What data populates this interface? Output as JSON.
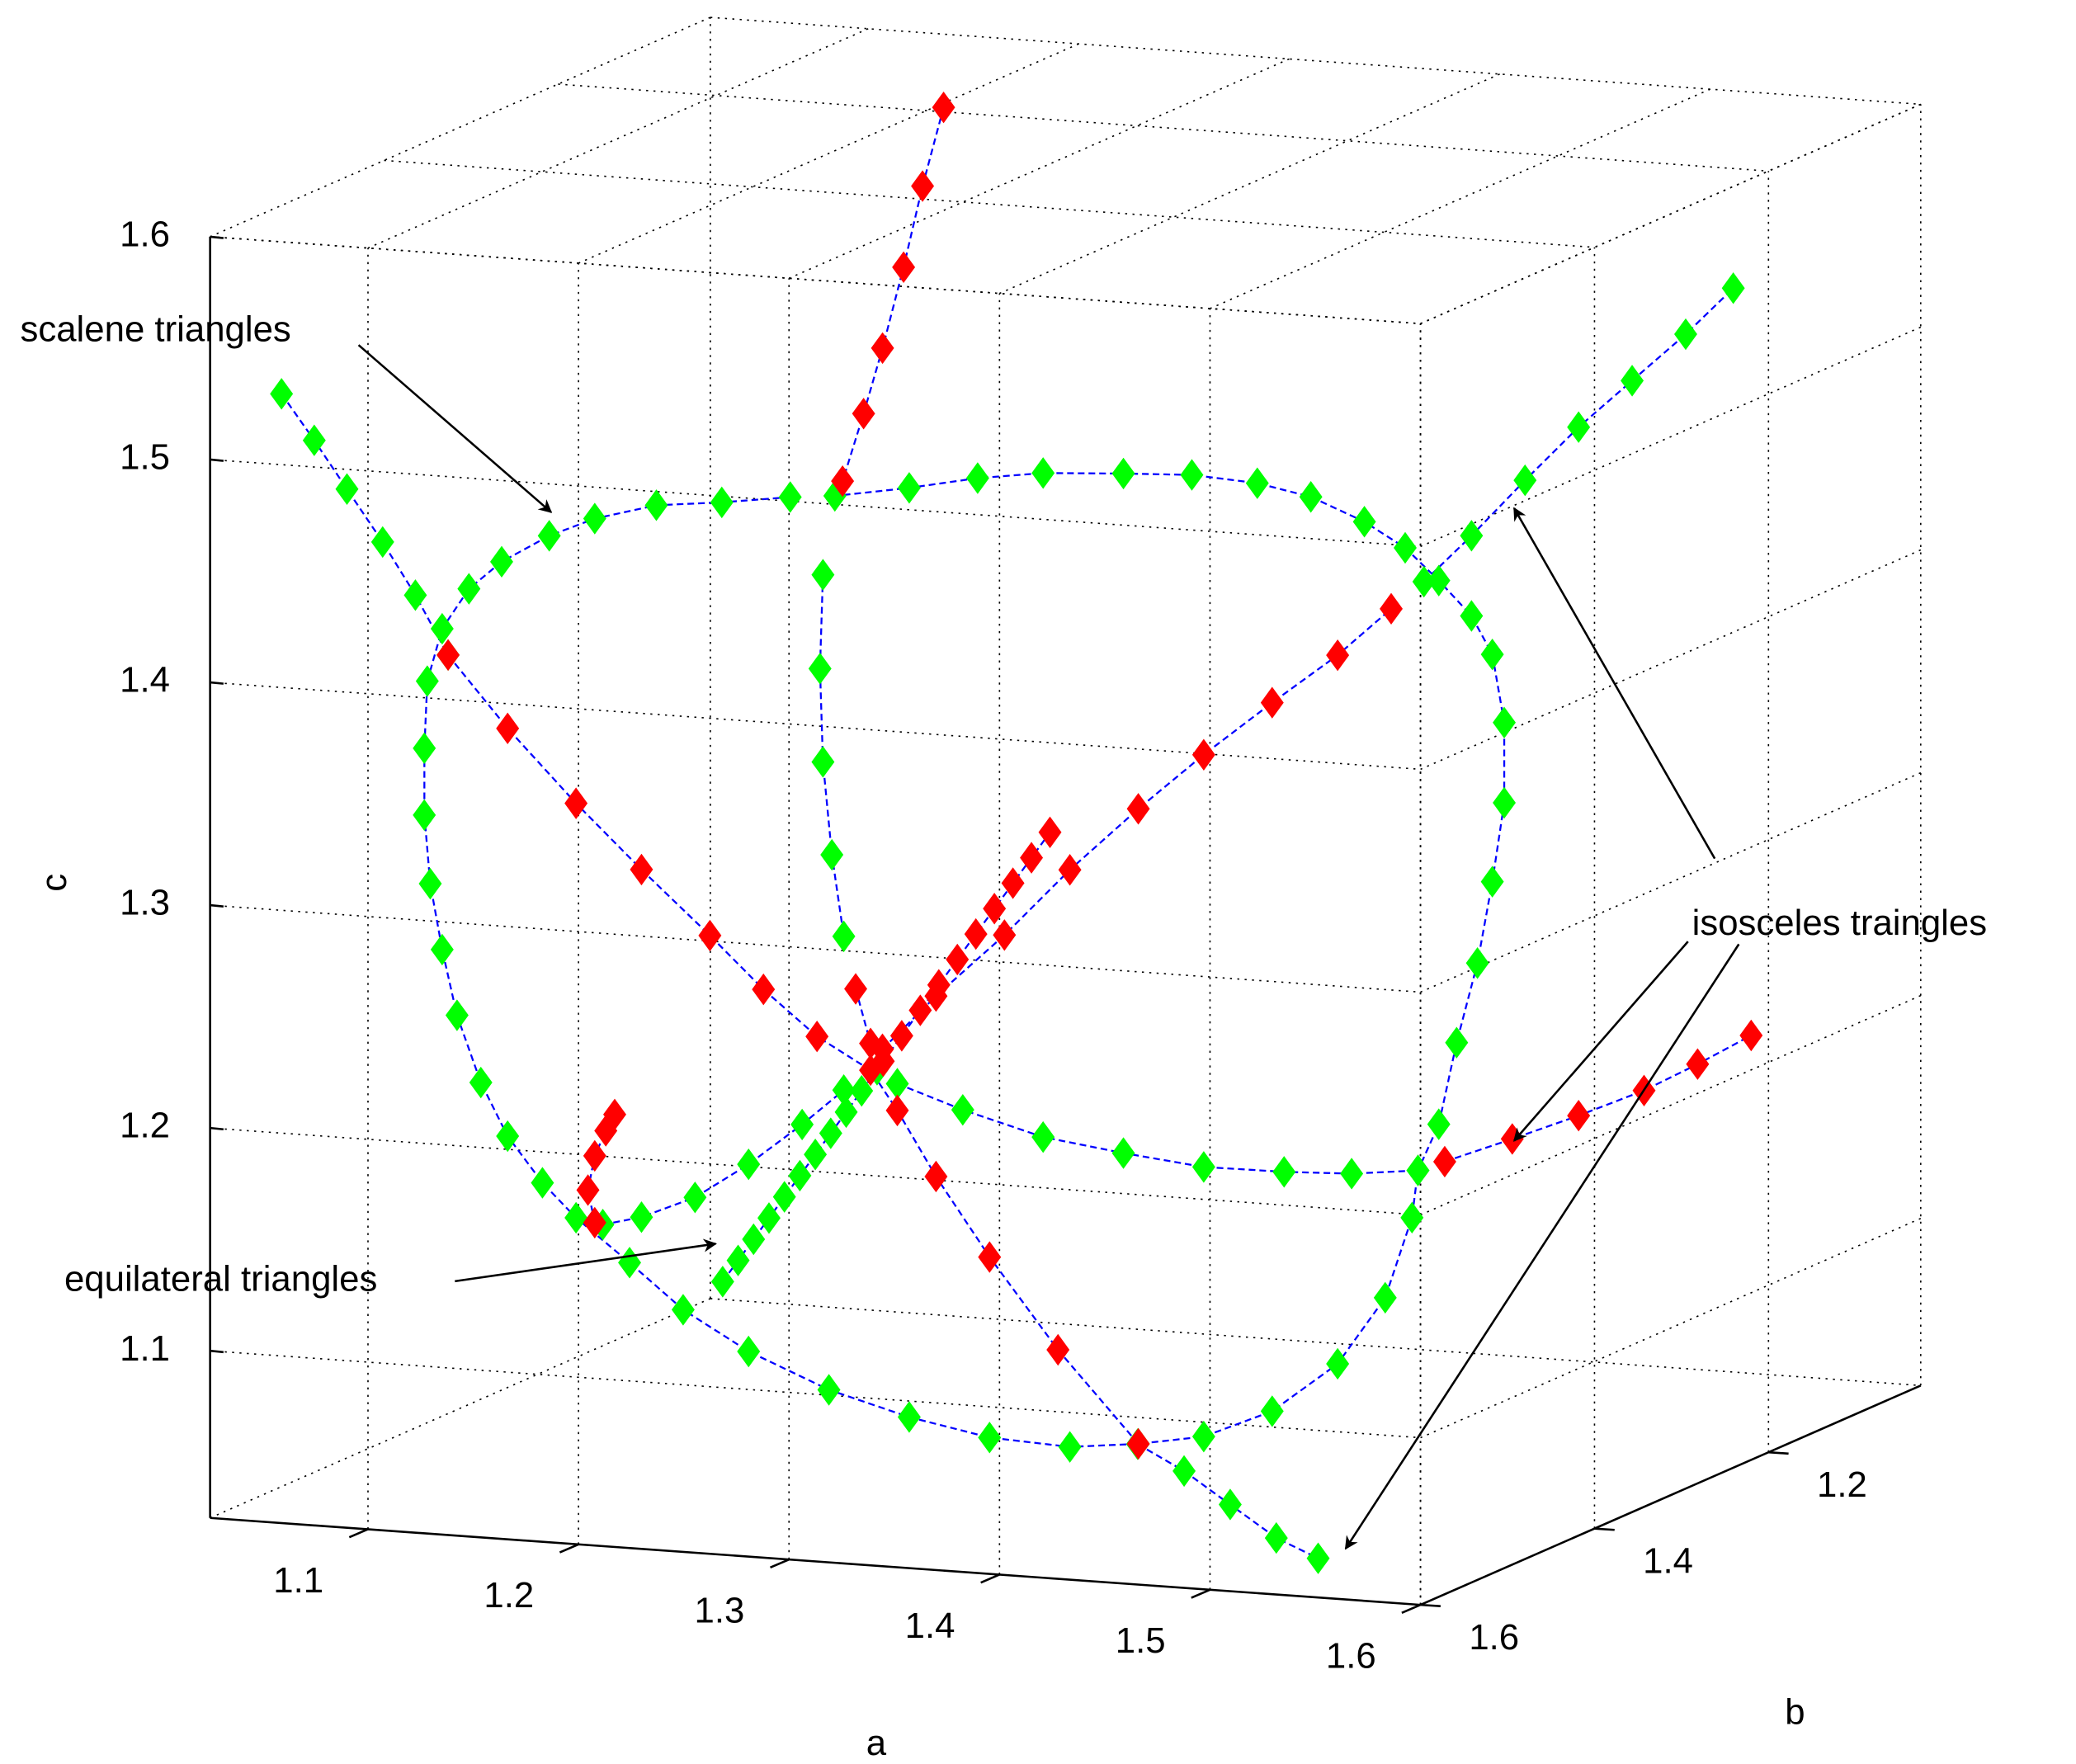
{
  "chart_data": {
    "type": "scatter3d",
    "xlabel": "a",
    "ylabel": "b",
    "zlabel": "c",
    "xlim": [
      1.025,
      1.6
    ],
    "ylim": [
      1.025,
      1.6
    ],
    "zlim": [
      1.025,
      1.6
    ],
    "xticks": [
      1.1,
      1.2,
      1.3,
      1.4,
      1.5,
      1.6
    ],
    "yticks": [
      1.2,
      1.4,
      1.6
    ],
    "zticks": [
      1.1,
      1.2,
      1.3,
      1.4,
      1.5,
      1.6
    ],
    "grid": true,
    "line_color": "#0000ff",
    "annotations": [
      "scalene triangles",
      "equilateral triangles",
      "isosceles traingles"
    ],
    "series": [
      {
        "color": "#00ff00",
        "x": [
          1.22,
          1.197,
          1.175,
          1.154,
          1.139,
          1.123,
          1.112,
          1.103,
          1.098,
          1.097,
          1.097,
          1.099,
          1.103,
          1.108,
          1.116,
          1.125,
          1.137,
          1.148,
          1.166,
          1.184,
          1.206,
          1.233,
          1.26,
          1.287,
          1.314,
          1.337,
          1.359,
          1.382,
          1.404,
          1.42,
          1.429,
          1.431,
          1.438,
          1.444,
          1.451,
          1.456,
          1.46,
          1.46,
          1.456,
          1.449,
          1.438,
          1.427,
          1.413,
          1.395,
          1.377,
          1.355,
          1.332,
          1.305,
          1.283,
          1.26,
          1.235
        ],
        "y": [
          1.405,
          1.428,
          1.45,
          1.47,
          1.486,
          1.502,
          1.513,
          1.522,
          1.527,
          1.528,
          1.528,
          1.526,
          1.522,
          1.517,
          1.509,
          1.5,
          1.489,
          1.477,
          1.459,
          1.441,
          1.419,
          1.392,
          1.365,
          1.338,
          1.311,
          1.288,
          1.266,
          1.243,
          1.221,
          1.205,
          1.196,
          1.194,
          1.187,
          1.181,
          1.174,
          1.169,
          1.165,
          1.165,
          1.169,
          1.176,
          1.187,
          1.199,
          1.212,
          1.23,
          1.248,
          1.27,
          1.293,
          1.32,
          1.342,
          1.365,
          1.39
        ],
        "z": [
          1.463,
          1.463,
          1.464,
          1.46,
          1.454,
          1.444,
          1.433,
          1.416,
          1.393,
          1.363,
          1.333,
          1.302,
          1.272,
          1.242,
          1.211,
          1.186,
          1.164,
          1.147,
          1.125,
          1.102,
          1.081,
          1.061,
          1.046,
          1.034,
          1.027,
          1.026,
          1.027,
          1.036,
          1.055,
          1.083,
          1.118,
          1.139,
          1.159,
          1.195,
          1.23,
          1.266,
          1.301,
          1.337,
          1.368,
          1.386,
          1.403,
          1.419,
          1.432,
          1.445,
          1.453,
          1.459,
          1.462,
          1.465,
          1.465,
          1.463,
          1.462
        ]
      },
      {
        "color": "#00ff00",
        "x": [
          1.157,
          1.17,
          1.188,
          1.206,
          1.224,
          1.238
        ],
        "y": [
          1.468,
          1.455,
          1.437,
          1.419,
          1.401,
          1.387
        ],
        "z": [
          1.143,
          1.145,
          1.152,
          1.165,
          1.181,
          1.195
        ]
      },
      {
        "color": "#00ff00",
        "x": [
          1.256,
          1.278,
          1.305,
          1.332,
          1.359,
          1.386,
          1.409,
          1.431
        ],
        "y": [
          1.369,
          1.347,
          1.32,
          1.293,
          1.266,
          1.239,
          1.217,
          1.194
        ],
        "z": [
          1.196,
          1.182,
          1.167,
          1.157,
          1.148,
          1.143,
          1.14,
          1.139
        ]
      },
      {
        "color": "#00ff00",
        "x": [
          1.433,
          1.449,
          1.467,
          1.485,
          1.503,
          1.521,
          1.537
        ],
        "y": [
          1.192,
          1.176,
          1.158,
          1.14,
          1.122,
          1.104,
          1.088
        ],
        "z": [
          1.403,
          1.422,
          1.445,
          1.467,
          1.486,
          1.505,
          1.524
        ]
      },
      {
        "color": "#00ff00",
        "x": [
          1.049,
          1.06,
          1.071,
          1.083,
          1.094,
          1.105
        ],
        "y": [
          1.576,
          1.565,
          1.554,
          1.542,
          1.531,
          1.52
        ],
        "z": [
          1.527,
          1.505,
          1.482,
          1.457,
          1.432,
          1.404
        ]
      },
      {
        "color": "#00ff00",
        "x": [
          1.366,
          1.41,
          1.46,
          1.51,
          1.546
        ],
        "y": [
          1.359,
          1.412,
          1.48,
          1.548,
          1.587
        ],
        "z": [
          1.04,
          1.04,
          1.04,
          1.04,
          1.04
        ]
      },
      {
        "color": "#00ff00",
        "x": [
          1.231,
          1.23,
          1.231,
          1.234,
          1.238
        ],
        "y": [
          1.394,
          1.395,
          1.394,
          1.391,
          1.387
        ],
        "z": [
          1.427,
          1.385,
          1.343,
          1.301,
          1.264
        ]
      },
      {
        "color": "#00ff00",
        "x": [
          1.035,
          1.0475,
          1.06,
          1.0725,
          1.085,
          1.0975,
          1.11,
          1.1225,
          1.135,
          1.1475,
          1.16
        ],
        "y": [
          1.035,
          1.0475,
          1.06,
          1.0725,
          1.085,
          1.0975,
          1.11,
          1.1225,
          1.135,
          1.1475,
          1.16
        ],
        "z": [
          1.035,
          1.0475,
          1.06,
          1.0725,
          1.085,
          1.0975,
          1.11,
          1.1225,
          1.135,
          1.1475,
          1.16
        ]
      },
      {
        "color": "#ff0000",
        "x": [
          1.154,
          1.152,
          1.154,
          1.158,
          1.161
        ],
        "y": [
          1.47,
          1.473,
          1.47,
          1.467,
          1.464
        ],
        "z": [
          1.144,
          1.159,
          1.174,
          1.185,
          1.192
        ]
      },
      {
        "color": "#ff0000",
        "x": [
          1.44,
          1.463,
          1.485,
          1.507,
          1.525,
          1.543
        ],
        "y": [
          1.185,
          1.163,
          1.14,
          1.118,
          1.1,
          1.082
        ],
        "z": [
          1.142,
          1.15,
          1.158,
          1.167,
          1.177,
          1.188
        ]
      },
      {
        "color": "#ff0000",
        "x": [
          1.251,
          1.269,
          1.292,
          1.314,
          1.337,
          1.359,
          1.382,
          1.404,
          1.422
        ],
        "y": [
          1.374,
          1.356,
          1.333,
          1.311,
          1.288,
          1.266,
          1.243,
          1.221,
          1.203
        ],
        "z": [
          1.212,
          1.234,
          1.259,
          1.286,
          1.311,
          1.333,
          1.354,
          1.373,
          1.392
        ]
      },
      {
        "color": "#ff0000",
        "x": [
          1.105,
          1.125,
          1.148,
          1.17,
          1.193,
          1.211,
          1.229,
          1.247,
          1.256,
          1.269,
          1.287,
          1.31,
          1.337
        ],
        "y": [
          1.52,
          1.5,
          1.477,
          1.455,
          1.432,
          1.414,
          1.396,
          1.378,
          1.369,
          1.356,
          1.338,
          1.315,
          1.288
        ],
        "z": [
          1.404,
          1.369,
          1.333,
          1.301,
          1.269,
          1.243,
          1.22,
          1.203,
          1.184,
          1.153,
          1.115,
          1.071,
          1.026
        ]
      },
      {
        "color": "#ff0000",
        "x": [
          1.204,
          1.194,
          1.185,
          1.175,
          1.166,
          1.156
        ],
        "y": [
          1.19,
          1.19,
          1.19,
          1.19,
          1.19,
          1.19
        ],
        "z": [
          1.6,
          1.564,
          1.527,
          1.49,
          1.46,
          1.429
        ]
      },
      {
        "color": "#ff0000",
        "x": [
          1.242,
          1.247
        ],
        "y": [
          1.383,
          1.378
        ],
        "z": [
          1.24,
          1.215
        ]
      },
      {
        "color": "#ff0000",
        "x": [
          1.165,
          1.18,
          1.195,
          1.21,
          1.225,
          1.24,
          1.255,
          1.27,
          1.285,
          1.3
        ],
        "y": [
          1.165,
          1.18,
          1.195,
          1.21,
          1.225,
          1.24,
          1.255,
          1.27,
          1.285,
          1.3
        ],
        "z": [
          1.165,
          1.18,
          1.195,
          1.21,
          1.225,
          1.24,
          1.255,
          1.27,
          1.285,
          1.3
        ]
      }
    ]
  }
}
